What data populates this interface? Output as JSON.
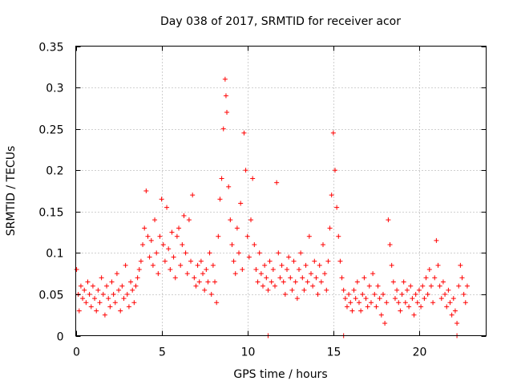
{
  "chart_data": {
    "type": "scatter",
    "title": "Day 038 of 2017, SRMTID for receiver acor",
    "xlabel": "GPS time / hours",
    "ylabel": "SRMTID / TECUs",
    "xlim": [
      0,
      23.9
    ],
    "ylim": [
      0,
      0.35
    ],
    "xticks": [
      0,
      5,
      10,
      15,
      20
    ],
    "xtick_labels": [
      "0",
      "5",
      "10",
      "15",
      "20"
    ],
    "yticks": [
      0,
      0.05,
      0.1,
      0.15,
      0.2,
      0.25,
      0.3,
      0.35
    ],
    "ytick_labels": [
      "0",
      "0.05",
      "0.1",
      "0.15",
      "0.2",
      "0.25",
      "0.3",
      "0.35"
    ],
    "grid": true,
    "marker": "+",
    "color": "#ff0000",
    "series": [
      {
        "name": "SRMTID",
        "points": [
          [
            0.05,
            0.08
          ],
          [
            0.15,
            0.05
          ],
          [
            0.2,
            0.03
          ],
          [
            0.3,
            0.06
          ],
          [
            0.4,
            0.045
          ],
          [
            0.5,
            0.055
          ],
          [
            0.6,
            0.04
          ],
          [
            0.7,
            0.065
          ],
          [
            0.8,
            0.05
          ],
          [
            0.9,
            0.035
          ],
          [
            1.0,
            0.06
          ],
          [
            1.1,
            0.045
          ],
          [
            1.2,
            0.03
          ],
          [
            1.3,
            0.055
          ],
          [
            1.4,
            0.04
          ],
          [
            1.5,
            0.07
          ],
          [
            1.6,
            0.05
          ],
          [
            1.7,
            0.025
          ],
          [
            1.8,
            0.06
          ],
          [
            1.9,
            0.045
          ],
          [
            2.0,
            0.035
          ],
          [
            2.1,
            0.065
          ],
          [
            2.2,
            0.05
          ],
          [
            2.3,
            0.04
          ],
          [
            2.4,
            0.075
          ],
          [
            2.5,
            0.055
          ],
          [
            2.6,
            0.03
          ],
          [
            2.7,
            0.06
          ],
          [
            2.8,
            0.045
          ],
          [
            2.9,
            0.085
          ],
          [
            3.0,
            0.05
          ],
          [
            3.1,
            0.035
          ],
          [
            3.2,
            0.065
          ],
          [
            3.3,
            0.055
          ],
          [
            3.4,
            0.04
          ],
          [
            3.5,
            0.06
          ],
          [
            3.6,
            0.07
          ],
          [
            3.7,
            0.08
          ],
          [
            3.8,
            0.09
          ],
          [
            3.9,
            0.11
          ],
          [
            4.0,
            0.13
          ],
          [
            4.1,
            0.175
          ],
          [
            4.2,
            0.12
          ],
          [
            4.3,
            0.095
          ],
          [
            4.4,
            0.115
          ],
          [
            4.5,
            0.085
          ],
          [
            4.6,
            0.14
          ],
          [
            4.7,
            0.1
          ],
          [
            4.8,
            0.075
          ],
          [
            4.9,
            0.12
          ],
          [
            5.0,
            0.165
          ],
          [
            5.1,
            0.11
          ],
          [
            5.2,
            0.09
          ],
          [
            5.3,
            0.155
          ],
          [
            5.4,
            0.105
          ],
          [
            5.5,
            0.08
          ],
          [
            5.6,
            0.125
          ],
          [
            5.7,
            0.095
          ],
          [
            5.8,
            0.07
          ],
          [
            5.9,
            0.12
          ],
          [
            6.0,
            0.13
          ],
          [
            6.1,
            0.085
          ],
          [
            6.2,
            0.11
          ],
          [
            6.3,
            0.145
          ],
          [
            6.4,
            0.1
          ],
          [
            6.5,
            0.075
          ],
          [
            6.6,
            0.14
          ],
          [
            6.7,
            0.09
          ],
          [
            6.8,
            0.17
          ],
          [
            6.9,
            0.07
          ],
          [
            7.0,
            0.06
          ],
          [
            7.1,
            0.085
          ],
          [
            7.2,
            0.065
          ],
          [
            7.3,
            0.09
          ],
          [
            7.4,
            0.075
          ],
          [
            7.5,
            0.055
          ],
          [
            7.6,
            0.08
          ],
          [
            7.7,
            0.065
          ],
          [
            7.8,
            0.1
          ],
          [
            7.9,
            0.05
          ],
          [
            8.0,
            0.085
          ],
          [
            8.1,
            0.065
          ],
          [
            8.2,
            0.04
          ],
          [
            8.3,
            0.12
          ],
          [
            8.4,
            0.165
          ],
          [
            8.5,
            0.19
          ],
          [
            8.6,
            0.25
          ],
          [
            8.7,
            0.31
          ],
          [
            8.75,
            0.29
          ],
          [
            8.8,
            0.27
          ],
          [
            8.9,
            0.18
          ],
          [
            9.0,
            0.14
          ],
          [
            9.1,
            0.11
          ],
          [
            9.2,
            0.09
          ],
          [
            9.3,
            0.075
          ],
          [
            9.4,
            0.13
          ],
          [
            9.5,
            0.1
          ],
          [
            9.6,
            0.16
          ],
          [
            9.7,
            0.08
          ],
          [
            9.8,
            0.245
          ],
          [
            9.9,
            0.2
          ],
          [
            10.0,
            0.12
          ],
          [
            10.1,
            0.095
          ],
          [
            10.2,
            0.14
          ],
          [
            10.3,
            0.19
          ],
          [
            10.4,
            0.11
          ],
          [
            10.5,
            0.08
          ],
          [
            10.6,
            0.065
          ],
          [
            10.7,
            0.1
          ],
          [
            10.8,
            0.075
          ],
          [
            10.9,
            0.06
          ],
          [
            11.0,
            0.085
          ],
          [
            11.1,
            0.07
          ],
          [
            11.2,
            0.055
          ],
          [
            11.3,
            0.09
          ],
          [
            11.4,
            0.065
          ],
          [
            11.5,
            0.08
          ],
          [
            11.6,
            0.06
          ],
          [
            11.7,
            0.185
          ],
          [
            11.8,
            0.1
          ],
          [
            11.9,
            0.07
          ],
          [
            12.0,
            0.085
          ],
          [
            12.1,
            0.065
          ],
          [
            12.2,
            0.05
          ],
          [
            12.3,
            0.08
          ],
          [
            12.4,
            0.095
          ],
          [
            12.5,
            0.07
          ],
          [
            12.6,
            0.055
          ],
          [
            12.7,
            0.09
          ],
          [
            12.8,
            0.065
          ],
          [
            12.9,
            0.045
          ],
          [
            13.0,
            0.08
          ],
          [
            13.1,
            0.1
          ],
          [
            13.2,
            0.07
          ],
          [
            13.3,
            0.055
          ],
          [
            13.4,
            0.085
          ],
          [
            13.5,
            0.065
          ],
          [
            13.6,
            0.12
          ],
          [
            13.7,
            0.075
          ],
          [
            13.8,
            0.06
          ],
          [
            13.9,
            0.09
          ],
          [
            14.0,
            0.07
          ],
          [
            14.1,
            0.05
          ],
          [
            14.2,
            0.085
          ],
          [
            14.3,
            0.065
          ],
          [
            14.4,
            0.11
          ],
          [
            14.5,
            0.075
          ],
          [
            14.6,
            0.055
          ],
          [
            14.7,
            0.09
          ],
          [
            14.8,
            0.13
          ],
          [
            14.9,
            0.17
          ],
          [
            15.0,
            0.245
          ],
          [
            15.1,
            0.2
          ],
          [
            15.2,
            0.155
          ],
          [
            15.3,
            0.12
          ],
          [
            15.4,
            0.09
          ],
          [
            15.5,
            0.07
          ],
          [
            15.6,
            0.055
          ],
          [
            15.7,
            0.045
          ],
          [
            15.8,
            0.035
          ],
          [
            15.9,
            0.05
          ],
          [
            16.0,
            0.04
          ],
          [
            16.1,
            0.03
          ],
          [
            16.2,
            0.055
          ],
          [
            16.3,
            0.045
          ],
          [
            16.4,
            0.065
          ],
          [
            16.5,
            0.04
          ],
          [
            16.6,
            0.03
          ],
          [
            16.7,
            0.05
          ],
          [
            16.8,
            0.07
          ],
          [
            16.9,
            0.045
          ],
          [
            17.0,
            0.035
          ],
          [
            17.1,
            0.06
          ],
          [
            17.2,
            0.04
          ],
          [
            17.3,
            0.075
          ],
          [
            17.4,
            0.05
          ],
          [
            17.5,
            0.035
          ],
          [
            17.6,
            0.06
          ],
          [
            17.7,
            0.045
          ],
          [
            17.8,
            0.025
          ],
          [
            17.9,
            0.05
          ],
          [
            18.0,
            0.015
          ],
          [
            18.1,
            0.04
          ],
          [
            18.2,
            0.14
          ],
          [
            18.3,
            0.11
          ],
          [
            18.4,
            0.085
          ],
          [
            18.5,
            0.065
          ],
          [
            18.6,
            0.045
          ],
          [
            18.7,
            0.055
          ],
          [
            18.8,
            0.04
          ],
          [
            18.9,
            0.03
          ],
          [
            19.0,
            0.05
          ],
          [
            19.1,
            0.065
          ],
          [
            19.2,
            0.04
          ],
          [
            19.3,
            0.055
          ],
          [
            19.4,
            0.035
          ],
          [
            19.5,
            0.06
          ],
          [
            19.6,
            0.045
          ],
          [
            19.7,
            0.025
          ],
          [
            19.8,
            0.05
          ],
          [
            19.9,
            0.04
          ],
          [
            20.0,
            0.055
          ],
          [
            20.1,
            0.035
          ],
          [
            20.2,
            0.06
          ],
          [
            20.3,
            0.045
          ],
          [
            20.4,
            0.07
          ],
          [
            20.5,
            0.05
          ],
          [
            20.6,
            0.08
          ],
          [
            20.7,
            0.06
          ],
          [
            20.8,
            0.04
          ],
          [
            20.9,
            0.07
          ],
          [
            21.0,
            0.115
          ],
          [
            21.1,
            0.085
          ],
          [
            21.2,
            0.06
          ],
          [
            21.3,
            0.045
          ],
          [
            21.4,
            0.065
          ],
          [
            21.5,
            0.05
          ],
          [
            21.6,
            0.035
          ],
          [
            21.7,
            0.055
          ],
          [
            21.8,
            0.04
          ],
          [
            21.9,
            0.025
          ],
          [
            22.0,
            0.045
          ],
          [
            22.1,
            0.03
          ],
          [
            22.2,
            0.015
          ],
          [
            22.3,
            0.06
          ],
          [
            22.4,
            0.085
          ],
          [
            22.5,
            0.07
          ],
          [
            22.6,
            0.05
          ],
          [
            22.7,
            0.04
          ],
          [
            22.8,
            0.06
          ],
          [
            11.2,
            0.0
          ],
          [
            15.6,
            0.0
          ],
          [
            22.2,
            0.0
          ]
        ]
      }
    ]
  }
}
